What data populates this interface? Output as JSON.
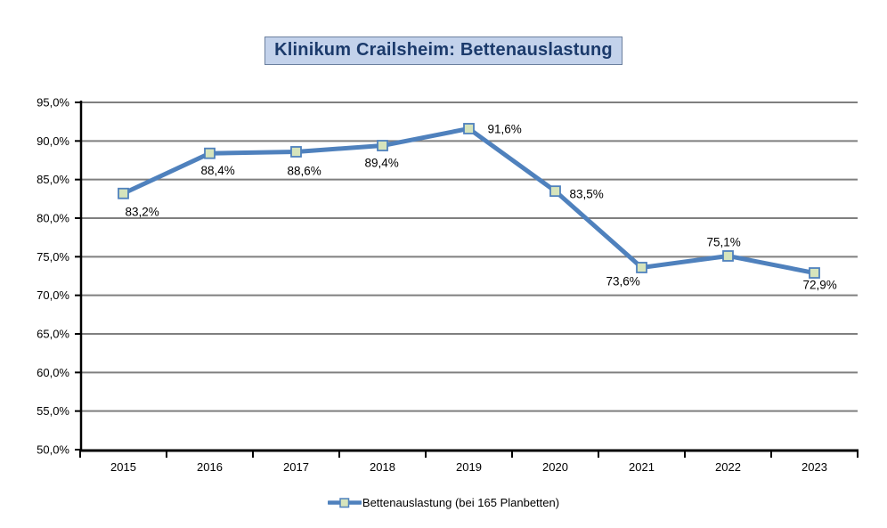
{
  "title": "Klinikum Crailsheim: Bettenauslastung",
  "colors": {
    "line": "#4F81BD",
    "marker_fill": "#D6E4BC",
    "marker_border": "#4F81BD",
    "gridline": "#7F7F7F",
    "axis": "#000000",
    "title_text": "#1B3A6B",
    "title_bg": "#C3D2EB",
    "title_border": "#6B7F9E"
  },
  "chart_data": {
    "type": "line",
    "title": "Klinikum Crailsheim: Bettenauslastung",
    "categories": [
      "2015",
      "2016",
      "2017",
      "2018",
      "2019",
      "2020",
      "2021",
      "2022",
      "2023"
    ],
    "series": [
      {
        "name": "Bettenauslastung (bei 165 Planbetten)",
        "values": [
          83.2,
          88.4,
          88.6,
          89.4,
          91.6,
          83.5,
          73.6,
          75.1,
          72.9
        ],
        "value_labels": [
          "83,2%",
          "88,4%",
          "88,6%",
          "89,4%",
          "91,6%",
          "83,5%",
          "73,6%",
          "75,1%",
          "72,9%"
        ]
      }
    ],
    "xlabel": "",
    "ylabel": "",
    "ylim": [
      50,
      95
    ],
    "ytick_step": 5,
    "ytick_labels": [
      "50,0%",
      "55,0%",
      "60,0%",
      "65,0%",
      "70,0%",
      "75,0%",
      "80,0%",
      "85,0%",
      "90,0%",
      "95,0%"
    ],
    "grid": true,
    "legend_position": "bottom"
  },
  "legend": {
    "label": "Bettenauslastung (bei 165 Planbetten)"
  }
}
